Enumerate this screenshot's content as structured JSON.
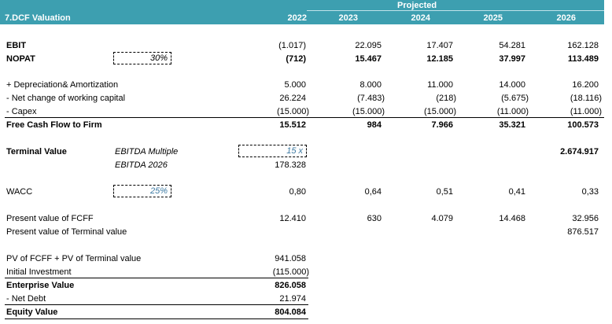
{
  "title": "7.DCF Valuation",
  "projected_label": "Projected",
  "years": [
    "2022",
    "2023",
    "2024",
    "2025",
    "2026"
  ],
  "ebit": {
    "label": "EBIT",
    "values": [
      "(1.017)",
      "22.095",
      "17.407",
      "54.281",
      "162.128"
    ]
  },
  "nopat": {
    "label": "NOPAT",
    "tax_rate": "30%",
    "values": [
      "(712)",
      "15.467",
      "12.185",
      "37.997",
      "113.489"
    ]
  },
  "da": {
    "label": " + Depreciation& Amortization",
    "values": [
      "5.000",
      "8.000",
      "11.000",
      "14.000",
      "16.200"
    ]
  },
  "nwc": {
    "label": " - Net change of working capital",
    "values": [
      "26.224",
      "(7.483)",
      "(218)",
      "(5.675)",
      "(18.116)"
    ]
  },
  "capex": {
    "label": " - Capex",
    "values": [
      "(15.000)",
      "(15.000)",
      "(15.000)",
      "(11.000)",
      "(11.000)"
    ]
  },
  "fcff": {
    "label": "Free Cash Flow to Firm",
    "values": [
      "15.512",
      "984",
      "7.966",
      "35.321",
      "100.573"
    ]
  },
  "terminal": {
    "label": "Terminal Value",
    "multiple_label": "EBITDA Multiple",
    "multiple_value": "15 x",
    "ebitda_label": "EBITDA 2026",
    "ebitda_value": "178.328",
    "value_2026": "2.674.917"
  },
  "wacc": {
    "label": "WACC",
    "rate": "25%",
    "values": [
      "0,80",
      "0,64",
      "0,51",
      "0,41",
      "0,33"
    ]
  },
  "pv_fcff": {
    "label": "Present value of FCFF",
    "values": [
      "12.410",
      "630",
      "4.079",
      "14.468",
      "32.956"
    ]
  },
  "pv_tv": {
    "label": "Present value of Terminal value",
    "value_2026": "876.517"
  },
  "summary": {
    "pv_sum_label": "PV of FCFF + PV of Terminal value",
    "pv_sum": "941.058",
    "initial_label": "Initial Investment",
    "initial": "(115.000)",
    "ev_label": "Enterprise Value",
    "ev": "826.058",
    "net_debt_label": " - Net Debt",
    "net_debt": "21.974",
    "equity_label": "Equity Value",
    "equity": "804.084"
  }
}
